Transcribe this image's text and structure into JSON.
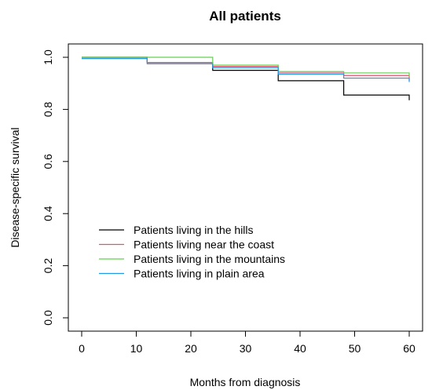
{
  "chart_data": {
    "type": "line",
    "step": true,
    "title": "All patients",
    "xlabel": "Months from diagnosis",
    "ylabel": "Disease-specific survival",
    "xlim": [
      0,
      60
    ],
    "ylim": [
      0,
      1
    ],
    "xticks": [
      0,
      10,
      20,
      30,
      40,
      50,
      60
    ],
    "yticks": [
      0.0,
      0.2,
      0.4,
      0.6,
      0.8,
      1.0
    ],
    "xtick_labels": [
      "0",
      "10",
      "20",
      "30",
      "40",
      "50",
      "60"
    ],
    "ytick_labels": [
      "0.0",
      "0.2",
      "0.4",
      "0.6",
      "0.8",
      "1.0"
    ],
    "grid": false,
    "legend_position": "bottom-left",
    "series": [
      {
        "name": "Patients living in the hills",
        "color": "#000000",
        "points": [
          [
            0,
            1.0
          ],
          [
            12,
            0.98
          ],
          [
            24,
            0.95
          ],
          [
            36,
            0.91
          ],
          [
            48,
            0.855
          ],
          [
            60,
            0.835
          ]
        ]
      },
      {
        "name": "Patients living  near the coast",
        "color": "#DF536B",
        "points": [
          [
            0,
            1.0
          ],
          [
            12,
            0.98
          ],
          [
            24,
            0.965
          ],
          [
            36,
            0.94
          ],
          [
            48,
            0.93
          ],
          [
            60,
            0.91
          ]
        ]
      },
      {
        "name": "Patients living in the mountains",
        "color": "#61D04F",
        "points": [
          [
            0,
            1.0
          ],
          [
            24,
            0.97
          ],
          [
            36,
            0.945
          ],
          [
            48,
            0.94
          ],
          [
            60,
            0.925
          ]
        ]
      },
      {
        "name": "Patients living in plain area",
        "color": "#2297E6",
        "points": [
          [
            0,
            0.995
          ],
          [
            12,
            0.975
          ],
          [
            24,
            0.96
          ],
          [
            36,
            0.935
          ],
          [
            48,
            0.92
          ],
          [
            60,
            0.905
          ]
        ]
      }
    ]
  }
}
